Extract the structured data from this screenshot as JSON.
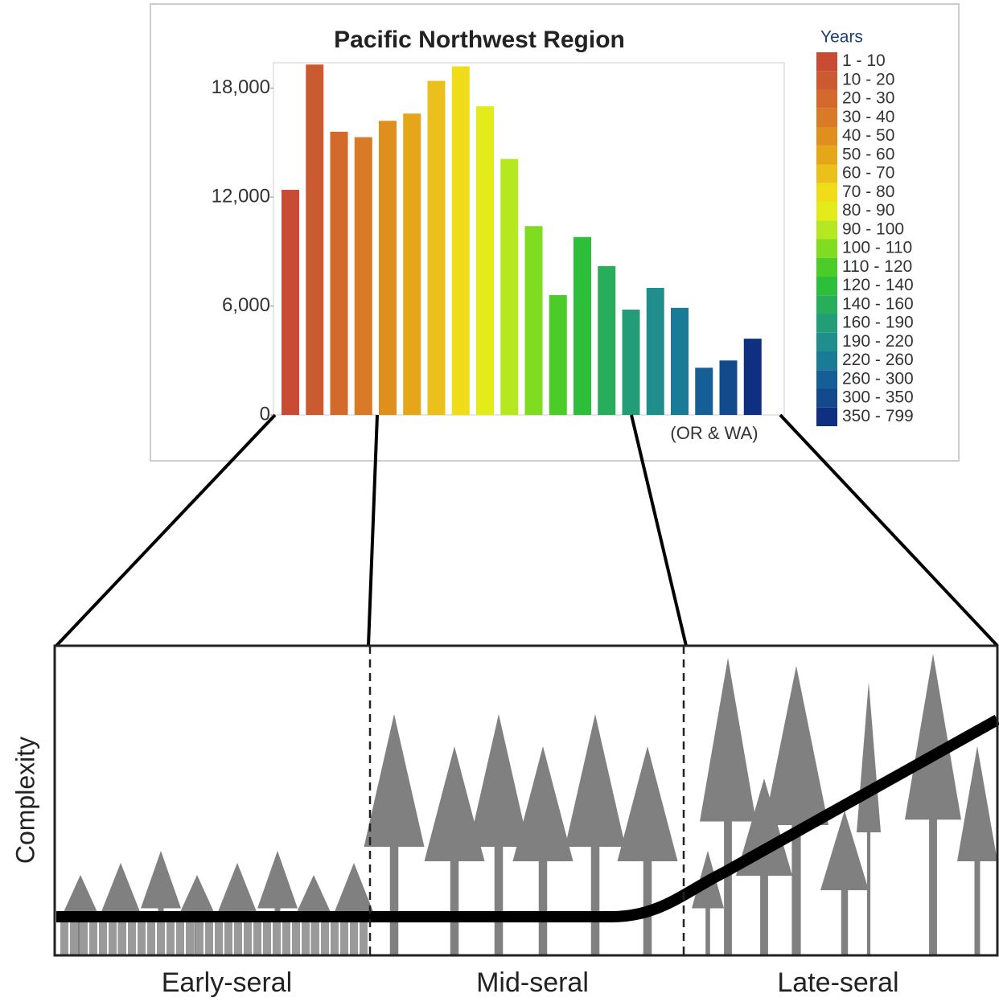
{
  "chart_data": {
    "type": "bar",
    "title": "Pacific Northwest Region",
    "annotation": "(OR & WA)",
    "legend_title": "Years",
    "categories": [
      "1 - 10",
      "10 - 20",
      "20 - 30",
      "30 - 40",
      "40 - 50",
      "50 - 60",
      "60 - 70",
      "70 - 80",
      "80 - 90",
      "90 - 100",
      "100 - 110",
      "110 - 120",
      "120 - 140",
      "140 - 160",
      "160 - 190",
      "190 - 220",
      "220 - 260",
      "260 - 300",
      "300 - 350",
      "350 - 799"
    ],
    "values": [
      12400,
      19300,
      15600,
      15300,
      16200,
      16600,
      18400,
      19200,
      17000,
      14100,
      10400,
      6600,
      9800,
      8200,
      5800,
      7000,
      5900,
      2600,
      3000,
      4200
    ],
    "colors": [
      "#c84b34",
      "#cc5a30",
      "#d36a2c",
      "#d97b26",
      "#e08f1e",
      "#e6a61a",
      "#ecc01a",
      "#f0dc18",
      "#e3ec1a",
      "#b5e820",
      "#7fdc20",
      "#4ccc28",
      "#2ebf3a",
      "#28ad5a",
      "#239d78",
      "#1f8e8c",
      "#1a7b96",
      "#165f96",
      "#134a8c",
      "#0f2f80"
    ],
    "ylim": [
      0,
      19400
    ],
    "yticks": [
      0,
      {
        "value": 6000,
        "label": "6,000"
      },
      {
        "value": 12000,
        "label": "12,000"
      },
      {
        "value": 18000,
        "label": "18,000"
      }
    ],
    "legend": "right"
  },
  "diagram": {
    "y_label": "Complexity",
    "stages": [
      "Early-seral",
      "Mid-seral",
      "Late-seral"
    ]
  }
}
